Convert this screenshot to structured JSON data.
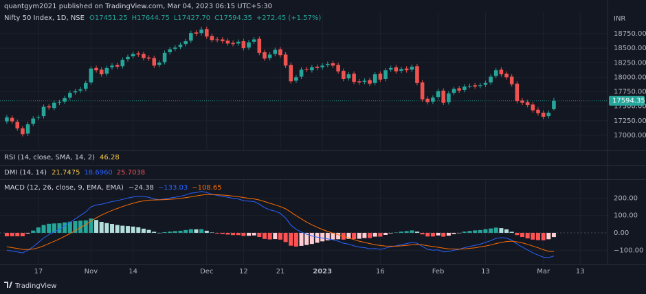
{
  "header": {
    "publisher": "quantgym2021 published on TradingView.com, Mar 04, 2023 06:15 UTC+5:30",
    "footer": "TradingView"
  },
  "chart_data": [
    {
      "type": "candlestick",
      "title": "Nifty 50 Index, 1D, NSE",
      "legend_values": [
        "O17451.25",
        "H17644.75",
        "L17427.70",
        "C17594.35",
        "+272.45 (+1.57%)"
      ],
      "currency": "INR",
      "open": [
        17240,
        17300,
        17230,
        17120,
        17030,
        17200,
        17300,
        17330,
        17500,
        17470,
        17560,
        17580,
        17650,
        17740,
        17770,
        17800,
        17910,
        18160,
        18130,
        18060,
        18170,
        18210,
        18190,
        18310,
        18360,
        18410,
        18400,
        18340,
        18330,
        18210,
        18260,
        18430,
        18490,
        18520,
        18570,
        18630,
        18770,
        18760,
        18830,
        18710,
        18650,
        18650,
        18630,
        18590,
        18580,
        18620,
        18510,
        18610,
        18660,
        18430,
        18330,
        18400,
        18480,
        18390,
        18210,
        17940,
        18010,
        18140,
        18120,
        18180,
        18170,
        18210,
        18240,
        18210,
        18110,
        17980,
        18060,
        17930,
        17920,
        17950,
        17900,
        18060,
        17970,
        18130,
        18170,
        18110,
        18150,
        18130,
        18190,
        17910,
        17630,
        17580,
        17660,
        17770,
        17570,
        17730,
        17810,
        17780,
        17850,
        17860,
        17850,
        17870,
        17910,
        18020,
        18130,
        18060,
        18010,
        17890,
        17600,
        17570,
        17530,
        17440,
        17390,
        17330,
        17451.25
      ],
      "high": [
        17350,
        17340,
        17270,
        17160,
        17230,
        17330,
        17350,
        17530,
        17540,
        17600,
        17610,
        17680,
        17770,
        17800,
        17830,
        17940,
        18190,
        18200,
        18170,
        18200,
        18240,
        18250,
        18340,
        18390,
        18440,
        18450,
        18440,
        18380,
        18370,
        18290,
        18460,
        18520,
        18550,
        18600,
        18660,
        18800,
        18810,
        18870,
        18870,
        18750,
        18690,
        18690,
        18670,
        18630,
        18650,
        18660,
        18640,
        18690,
        18700,
        18470,
        18430,
        18510,
        18520,
        18430,
        18250,
        18040,
        18170,
        18180,
        18210,
        18220,
        18240,
        18270,
        18280,
        18250,
        18150,
        18090,
        18100,
        17970,
        17980,
        17990,
        18090,
        18100,
        18160,
        18200,
        18210,
        18180,
        18190,
        18220,
        18230,
        17950,
        17670,
        17690,
        17800,
        17810,
        17760,
        17840,
        17850,
        17880,
        17890,
        17900,
        17900,
        17940,
        18050,
        18160,
        18170,
        18100,
        18050,
        17930,
        17640,
        17610,
        17570,
        17480,
        17430,
        17430,
        17644.75
      ],
      "low": [
        17200,
        17200,
        17080,
        16980,
        16990,
        17160,
        17260,
        17290,
        17440,
        17430,
        17520,
        17540,
        17610,
        17700,
        17730,
        17760,
        17870,
        18080,
        18010,
        18020,
        18130,
        18140,
        18150,
        18270,
        18320,
        18350,
        18290,
        18280,
        18160,
        18170,
        18220,
        18390,
        18450,
        18480,
        18530,
        18590,
        18710,
        18720,
        18660,
        18600,
        18600,
        18580,
        18540,
        18530,
        18540,
        18460,
        18470,
        18570,
        18380,
        18280,
        18290,
        18360,
        18340,
        18160,
        17890,
        17900,
        17970,
        18090,
        18080,
        18120,
        18130,
        18170,
        18160,
        18060,
        17930,
        17940,
        17880,
        17870,
        17880,
        17850,
        17860,
        17920,
        17930,
        18090,
        18060,
        18070,
        18080,
        18090,
        17860,
        17580,
        17530,
        17540,
        17620,
        17520,
        17530,
        17690,
        17730,
        17740,
        17810,
        17800,
        17810,
        17830,
        17870,
        17980,
        18010,
        17960,
        17840,
        17550,
        17520,
        17480,
        17390,
        17340,
        17280,
        17290,
        17427.7
      ],
      "close": [
        17310,
        17240,
        17120,
        17020,
        17190,
        17290,
        17310,
        17490,
        17480,
        17560,
        17570,
        17640,
        17730,
        17760,
        17790,
        17900,
        18150,
        18120,
        18050,
        18160,
        18200,
        18180,
        18300,
        18350,
        18400,
        18390,
        18330,
        18320,
        18200,
        18250,
        18420,
        18480,
        18510,
        18560,
        18620,
        18760,
        18750,
        18820,
        18700,
        18640,
        18640,
        18620,
        18580,
        18570,
        18610,
        18500,
        18600,
        18650,
        18420,
        18320,
        18390,
        18470,
        18380,
        18200,
        17930,
        18000,
        18130,
        18130,
        18170,
        18160,
        18200,
        18230,
        18200,
        18100,
        17970,
        18050,
        17920,
        17910,
        17940,
        17890,
        18050,
        17960,
        18120,
        18160,
        18100,
        18140,
        18120,
        18180,
        17900,
        17620,
        17570,
        17650,
        17760,
        17560,
        17720,
        17800,
        17770,
        17840,
        17850,
        17840,
        17860,
        17900,
        18010,
        18120,
        18050,
        18000,
        17880,
        17590,
        17560,
        17520,
        17430,
        17380,
        17320,
        17390,
        17594.35
      ],
      "up_color": "#26a69a",
      "down_color": "#ef5350",
      "ylim": [
        16752,
        19116
      ],
      "yticks": [
        {
          "value": 17000,
          "label": "17000.00"
        },
        {
          "value": 17250,
          "label": "17250.00"
        },
        {
          "value": 17500,
          "label": "17500.00"
        },
        {
          "value": 17750,
          "label": "17750.00"
        },
        {
          "value": 18000,
          "label": "18000.00"
        },
        {
          "value": 18250,
          "label": "18250.00"
        },
        {
          "value": 18500,
          "label": "18500.00"
        },
        {
          "value": 18750,
          "label": "18750.00"
        }
      ],
      "xlim": [
        -1.3,
        114.2
      ],
      "xticks": [
        {
          "value": 6,
          "label": "17"
        },
        {
          "value": 16,
          "label": "Nov"
        },
        {
          "value": 24,
          "label": "14"
        },
        {
          "value": 38,
          "label": "Dec"
        },
        {
          "value": 45,
          "label": "12"
        },
        {
          "value": 52,
          "label": "21"
        },
        {
          "value": 60,
          "label": "2023"
        },
        {
          "value": 71,
          "label": "16"
        },
        {
          "value": 82,
          "label": "Feb"
        },
        {
          "value": 91,
          "label": "13"
        },
        {
          "value": 102,
          "label": "Mar"
        },
        {
          "value": 109,
          "label": "13"
        }
      ],
      "grid": true
    },
    {
      "type": "indicator",
      "title": "RSI (14, close, SMA, 14, 2)",
      "legend_values": [
        "46.28"
      ]
    },
    {
      "type": "indicator",
      "title": "DMI (14, 14)",
      "legend_values": [
        "21.7475",
        "18.6960",
        "25.7038"
      ]
    },
    {
      "type": "macd",
      "title": "MACD (12, 26, close, 9, EMA, EMA)",
      "legend_values": [
        "−24.38",
        "−133.03",
        "−108.65"
      ],
      "series": [
        {
          "colors": [
            "#26a69a",
            "#b2dfdb",
            "#ffcdd2",
            "#ff5252"
          ],
          "values": [
            -20,
            -20,
            -20,
            -20,
            -4,
            13,
            31,
            45,
            52,
            54,
            55,
            60,
            64,
            67,
            70,
            72,
            82,
            74,
            63,
            56,
            51,
            45,
            41,
            39,
            36,
            32,
            24,
            17,
            6,
            0,
            4,
            7,
            10,
            12,
            16,
            21,
            20,
            21,
            12,
            2,
            -4,
            -7,
            -10,
            -13,
            -13,
            -18,
            -17,
            -15,
            -24,
            -35,
            -38,
            -36,
            -39,
            -53,
            -74,
            -79,
            -75,
            -70,
            -64,
            -57,
            -49,
            -43,
            -38,
            -37,
            -39,
            -35,
            -36,
            -34,
            -30,
            -30,
            -22,
            -22,
            -12,
            -3,
            2,
            7,
            10,
            14,
            7,
            -9,
            -21,
            -21,
            -15,
            -22,
            -16,
            -7,
            -1,
            7,
            11,
            14,
            16,
            21,
            25,
            30,
            27,
            20,
            6,
            -13,
            -24,
            -32,
            -39,
            -42,
            -43,
            -37,
            -24.38
          ]
        },
        {
          "color": "#2962ff",
          "values": [
            -100,
            -105,
            -110,
            -115,
            -100,
            -80,
            -55,
            -30,
            -10,
            5,
            20,
            40,
            60,
            80,
            100,
            120,
            150,
            160,
            165,
            172,
            180,
            185,
            192,
            200,
            206,
            210,
            208,
            205,
            195,
            190,
            195,
            200,
            205,
            210,
            218,
            228,
            232,
            238,
            232,
            222,
            215,
            210,
            205,
            198,
            195,
            185,
            182,
            180,
            165,
            145,
            132,
            125,
            112,
            85,
            45,
            20,
            5,
            -8,
            -18,
            -25,
            -30,
            -35,
            -40,
            -48,
            -60,
            -65,
            -75,
            -82,
            -85,
            -92,
            -90,
            -95,
            -88,
            -80,
            -75,
            -68,
            -62,
            -55,
            -60,
            -78,
            -95,
            -100,
            -98,
            -110,
            -108,
            -100,
            -95,
            -85,
            -78,
            -72,
            -65,
            -55,
            -45,
            -32,
            -28,
            -30,
            -42,
            -65,
            -82,
            -98,
            -115,
            -128,
            -140,
            -143,
            -133.03
          ]
        },
        {
          "color": "#ff6d00",
          "values": [
            -80,
            -85,
            -90,
            -95,
            -96,
            -93,
            -86,
            -75,
            -62,
            -49,
            -35,
            -20,
            -4,
            13,
            30,
            48,
            68,
            86,
            102,
            116,
            129,
            140,
            151,
            161,
            170,
            178,
            184,
            188,
            189,
            190,
            191,
            193,
            195,
            198,
            202,
            207,
            212,
            217,
            220,
            220,
            219,
            217,
            215,
            211,
            208,
            203,
            199,
            195,
            189,
            180,
            170,
            161,
            151,
            138,
            119,
            99,
            80,
            62,
            46,
            32,
            19,
            8,
            -2,
            -11,
            -21,
            -30,
            -39,
            -48,
            -55,
            -62,
            -68,
            -73,
            -76,
            -77,
            -77,
            -75,
            -72,
            -69,
            -67,
            -69,
            -74,
            -79,
            -83,
            -88,
            -92,
            -93,
            -94,
            -92,
            -89,
            -86,
            -81,
            -76,
            -70,
            -62,
            -55,
            -50,
            -48,
            -52,
            -58,
            -66,
            -76,
            -86,
            -97,
            -106,
            -108.65
          ]
        }
      ],
      "ylim": [
        -178,
        304
      ],
      "yticks": [
        {
          "value": -100,
          "label": "−100.00"
        },
        {
          "value": 0,
          "label": "0.00"
        },
        {
          "value": 100,
          "label": "100.00"
        },
        {
          "value": 200,
          "label": "200.00"
        }
      ],
      "grid": true
    }
  ]
}
